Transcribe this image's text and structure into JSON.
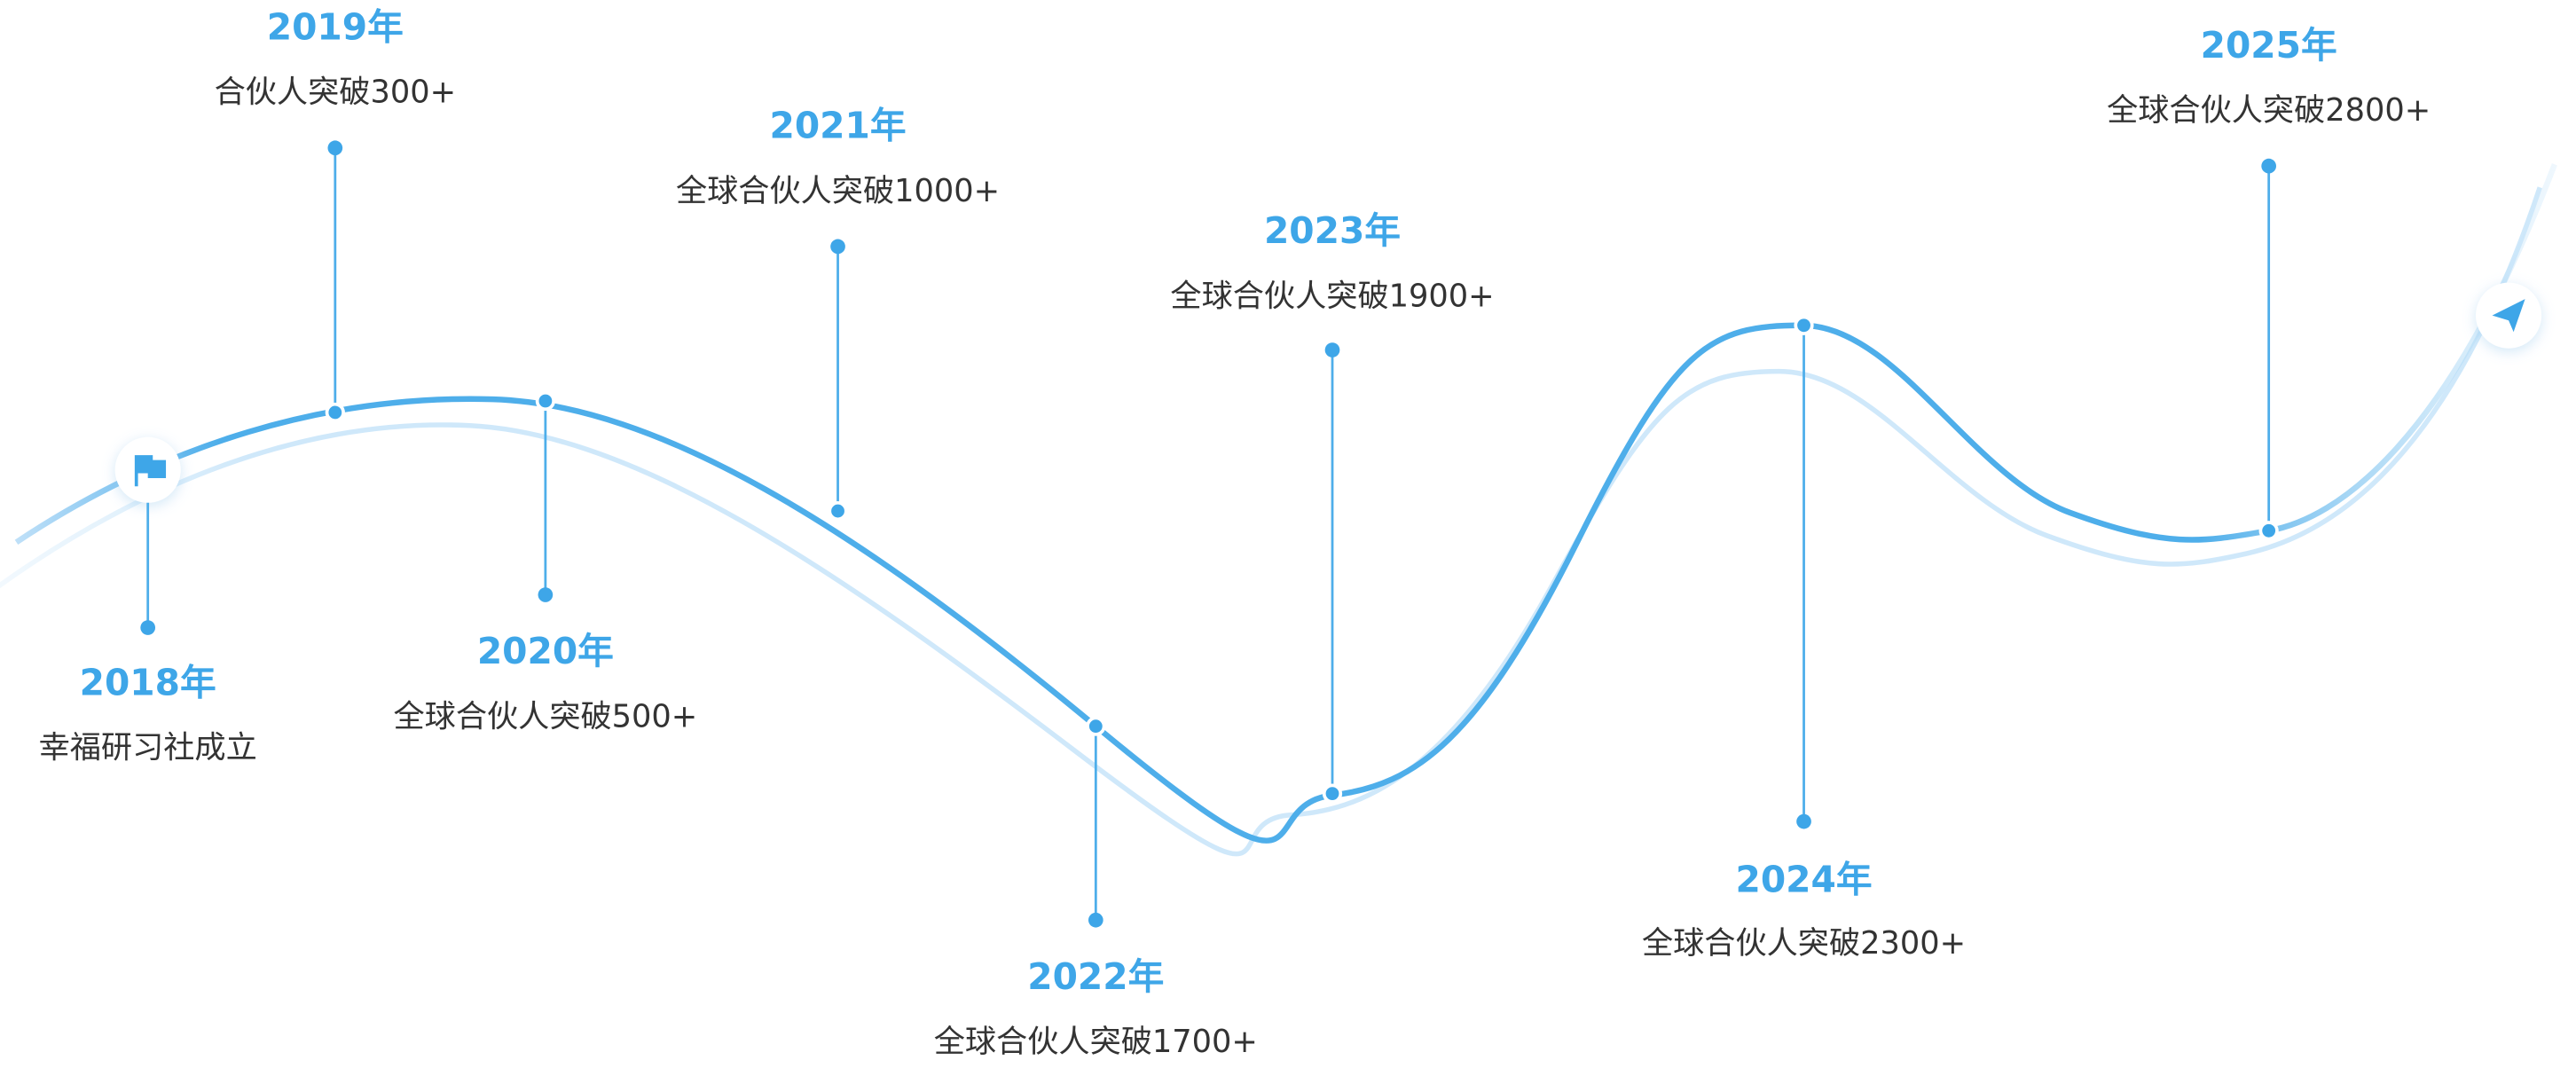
{
  "milestones": [
    {
      "year": "2018年",
      "text": "幸福研习社成立"
    },
    {
      "year": "2019年",
      "text": "合伙人突破300+"
    },
    {
      "year": "2020年",
      "text": "全球合伙人突破500+"
    },
    {
      "year": "2021年",
      "text": "全球合伙人突破1000+"
    },
    {
      "year": "2022年",
      "text": "全球合伙人突破1700+"
    },
    {
      "year": "2023年",
      "text": "全球合伙人突破1900+"
    },
    {
      "year": "2024年",
      "text": "全球合伙人突破2300+"
    },
    {
      "year": "2025年",
      "text": "全球合伙人突破2800+"
    }
  ]
}
